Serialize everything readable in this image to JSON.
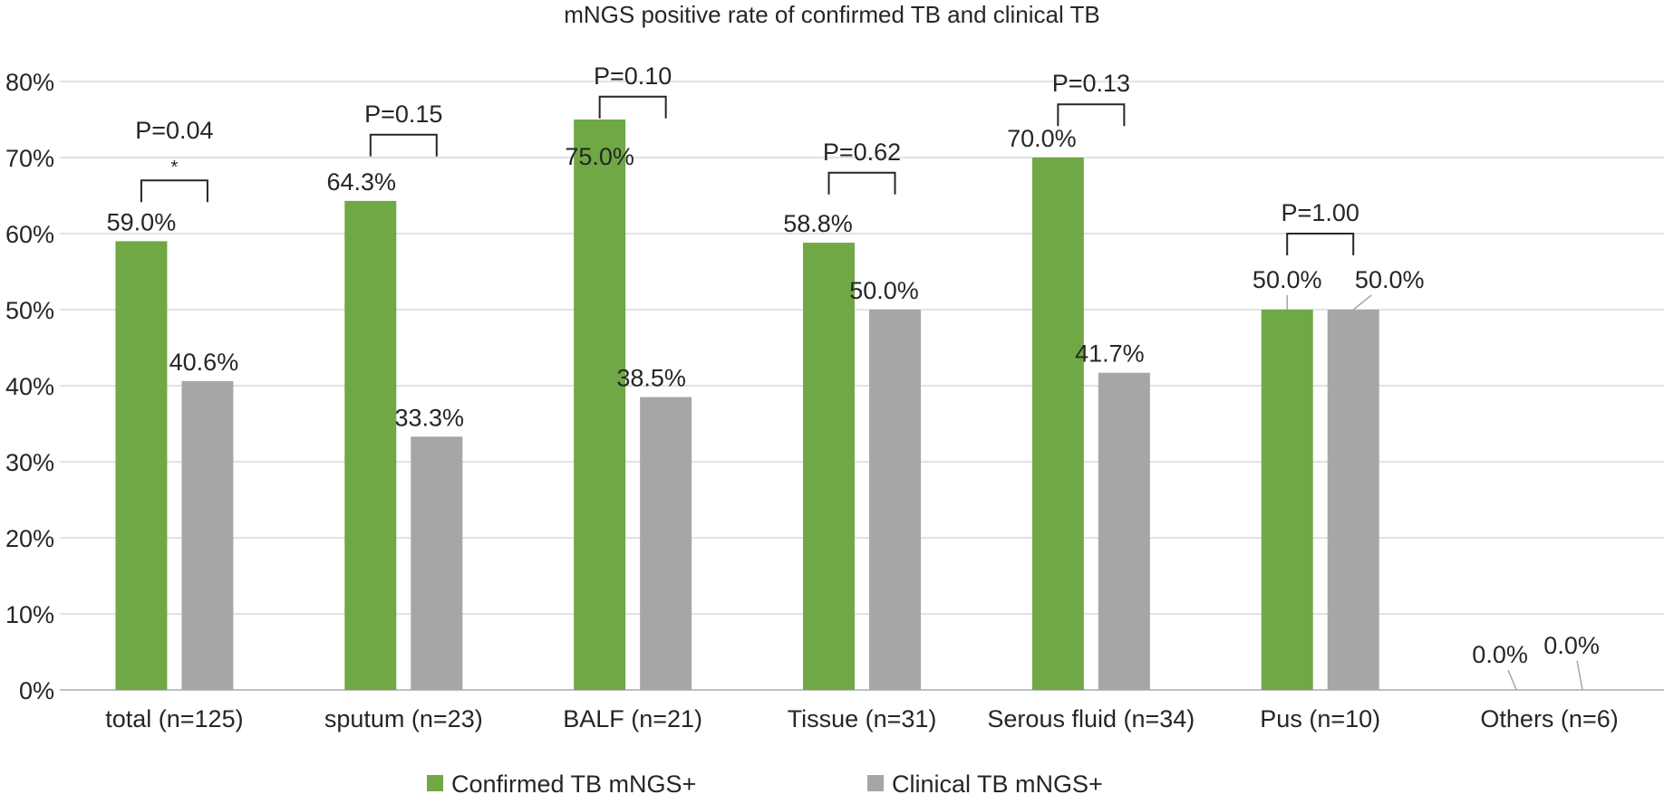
{
  "chart_data": {
    "type": "bar",
    "title": "mNGS positive rate of confirmed TB and clinical TB",
    "categories": [
      "total (n=125)",
      "sputum (n=23)",
      "BALF (n=21)",
      "Tissue (n=31)",
      "Serous fluid (n=34)",
      "Pus (n=10)",
      "Others (n=6)"
    ],
    "series": [
      {
        "name": "Confirmed TB mNGS+",
        "color": "#70a845",
        "values": [
          59.0,
          64.3,
          75.0,
          58.8,
          70.0,
          50.0,
          0.0
        ],
        "labels": [
          "59.0%",
          "64.3%",
          "75.0%",
          "58.8%",
          "70.0%",
          "50.0%",
          "0.0%"
        ]
      },
      {
        "name": "Clinical TB mNGS+",
        "color": "#a6a6a6",
        "values": [
          40.6,
          33.3,
          38.5,
          50.0,
          41.7,
          50.0,
          0.0
        ],
        "labels": [
          "40.6%",
          "33.3%",
          "38.5%",
          "50.0%",
          "41.7%",
          "50.0%",
          "0.0%"
        ]
      }
    ],
    "ylim": [
      0,
      80
    ],
    "yticks": [
      0,
      10,
      20,
      30,
      40,
      50,
      60,
      70,
      80
    ],
    "ytick_labels": [
      "0%",
      "10%",
      "20%",
      "30%",
      "40%",
      "50%",
      "60%",
      "70%",
      "80%"
    ],
    "grid": true,
    "legend_position": "bottom",
    "annotations": [
      {
        "category": 0,
        "text": "P=0.04",
        "significance": "*",
        "bracket_y": 67
      },
      {
        "category": 1,
        "text": "P=0.15",
        "significance": "",
        "bracket_y": 73
      },
      {
        "category": 2,
        "text": "P=0.10",
        "significance": "",
        "bracket_y": 78
      },
      {
        "category": 3,
        "text": "P=0.62",
        "significance": "",
        "bracket_y": 68
      },
      {
        "category": 4,
        "text": "P=0.13",
        "significance": "",
        "bracket_y": 77
      },
      {
        "category": 5,
        "text": "P=1.00",
        "significance": "",
        "bracket_y": 60
      }
    ]
  }
}
